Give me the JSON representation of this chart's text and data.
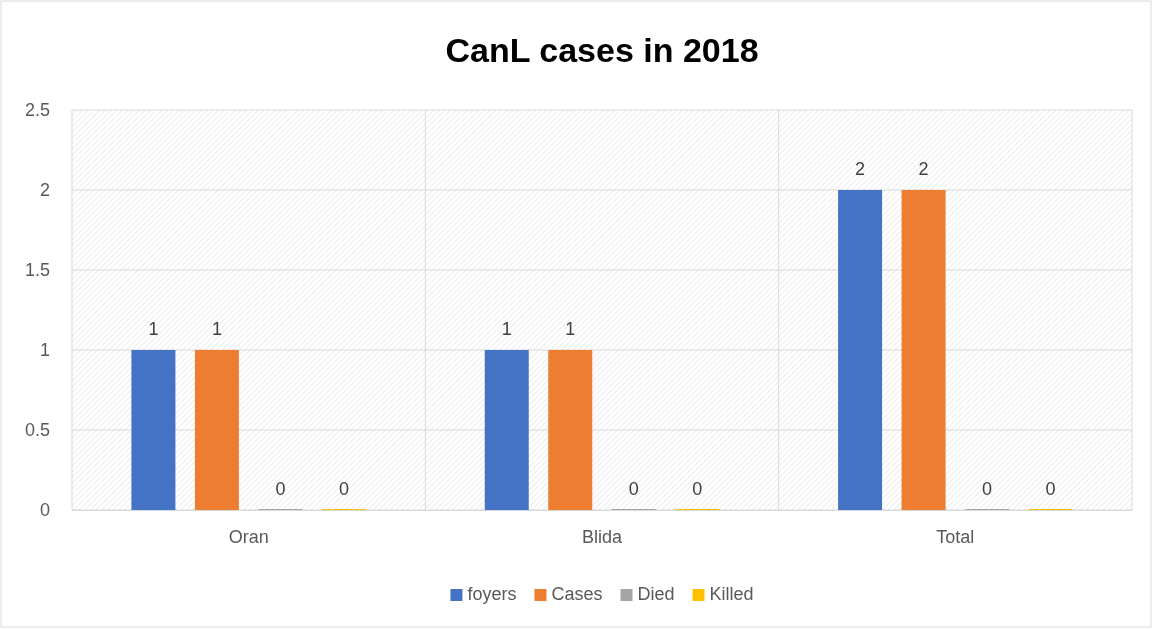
{
  "chart_data": {
    "type": "bar",
    "title": "CanL cases in 2018",
    "categories": [
      "Oran",
      "Blida",
      "Total"
    ],
    "series": [
      {
        "name": "foyers",
        "color": "#4472c4",
        "values": [
          1,
          1,
          2
        ]
      },
      {
        "name": "Cases",
        "color": "#ed7d31",
        "values": [
          1,
          1,
          2
        ]
      },
      {
        "name": "Died",
        "color": "#a5a5a5",
        "values": [
          0,
          0,
          0
        ]
      },
      {
        "name": "Killed",
        "color": "#ffc000",
        "values": [
          0,
          0,
          0
        ]
      }
    ],
    "ylim": [
      0,
      2.5
    ],
    "yticks": [
      0,
      0.5,
      1,
      1.5,
      2,
      2.5
    ],
    "grid": true,
    "data_labels": true,
    "legend": "bottom"
  }
}
